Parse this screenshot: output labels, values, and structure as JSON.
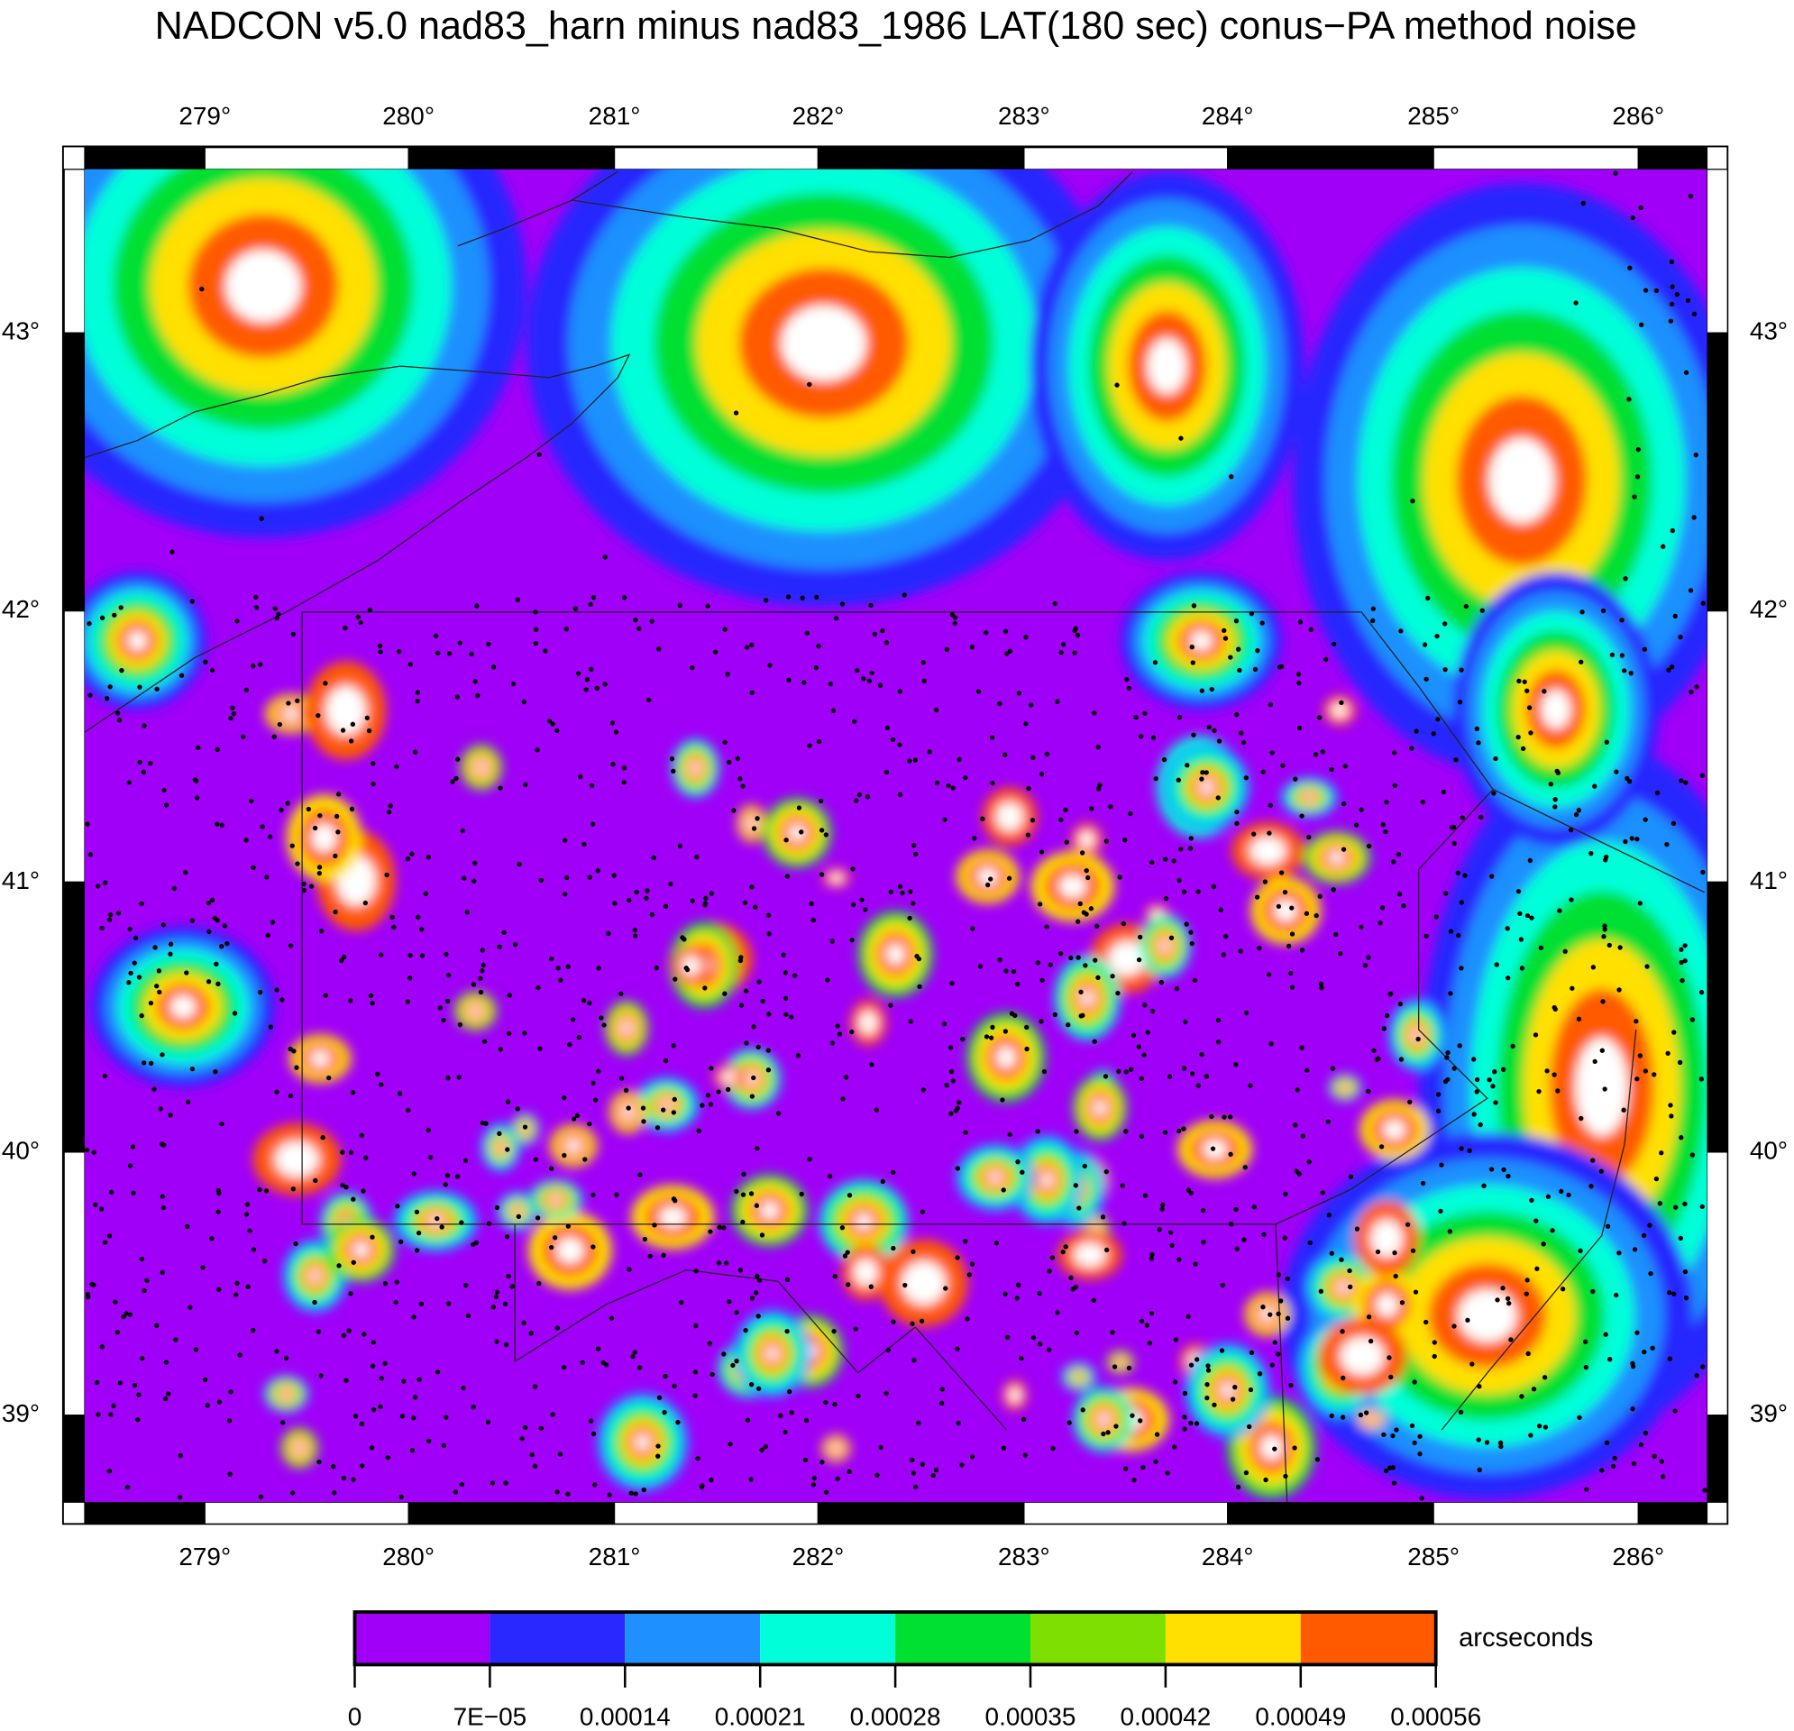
{
  "title": "NADCON v5.0 nad83_harn minus nad83_1986 LAT(180 sec) conus−PA method noise",
  "map": {
    "lon_ticks": [
      "279°",
      "280°",
      "281°",
      "282°",
      "283°",
      "284°",
      "285°",
      "286°"
    ],
    "lat_ticks": [
      "43°",
      "42°",
      "41°",
      "40°",
      "39°"
    ]
  },
  "colorbar": {
    "unit": "arcseconds",
    "colors": [
      "#a000f8",
      "#2828ff",
      "#1e90ff",
      "#00ffd8",
      "#00e030",
      "#7ee000",
      "#ffe000",
      "#ff5a00"
    ],
    "tick_labels": [
      "0",
      "7E−05",
      "0.00014",
      "0.00021",
      "0.00028",
      "0.00035",
      "0.00042",
      "0.00049",
      "0.00056"
    ]
  }
}
